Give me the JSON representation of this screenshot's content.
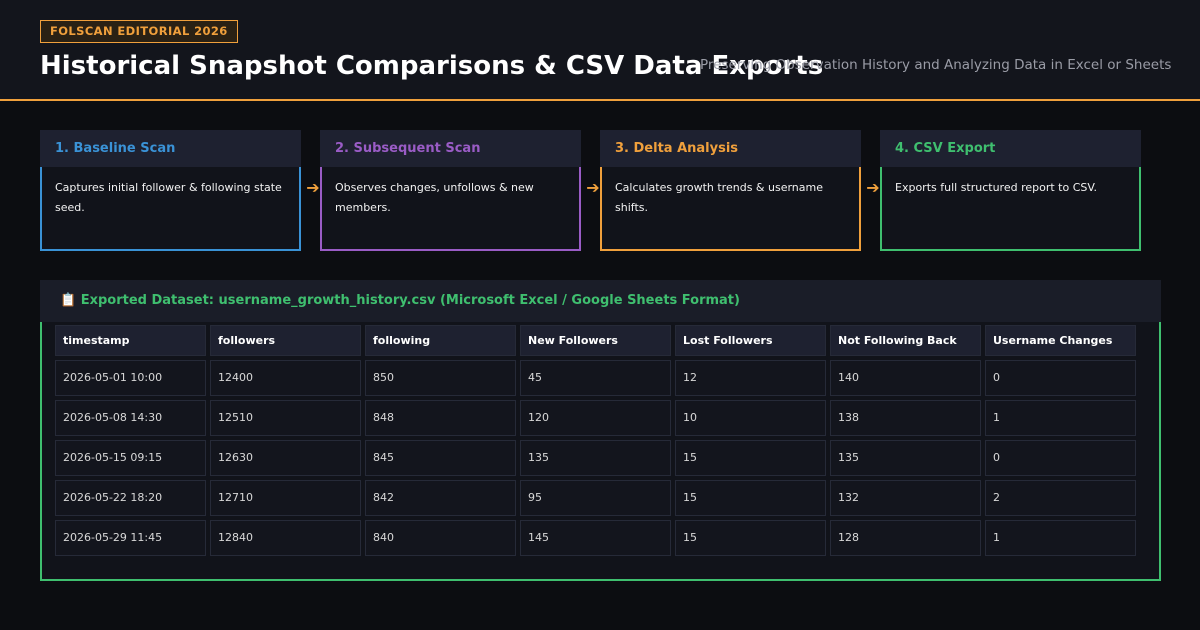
{
  "header": {
    "badge": "FOLSCAN EDITORIAL 2026",
    "title": "Historical Snapshot Comparisons & CSV Data Exports",
    "subtitle": "Preserving Observation History and Analyzing Data in Excel or Sheets"
  },
  "steps": [
    {
      "title": "1. Baseline Scan",
      "desc": "Captures initial follower & following state seed.",
      "color": "#3a92d6"
    },
    {
      "title": "2. Subsequent Scan",
      "desc": "Observes changes, unfollows & new members.",
      "color": "#9a5cc6"
    },
    {
      "title": "3. Delta Analysis",
      "desc": "Calculates growth trends & username shifts.",
      "color": "#f0a03c"
    },
    {
      "title": "4. CSV Export",
      "desc": "Exports full structured report to CSV.",
      "color": "#3fbf6f"
    }
  ],
  "arrow_glyph": "➔",
  "dataset": {
    "heading": "📋 Exported Dataset: username_growth_history.csv (Microsoft Excel / Google Sheets Format)",
    "columns": [
      "timestamp",
      "followers",
      "following",
      "New Followers",
      "Lost Followers",
      "Not Following Back",
      "Username Changes"
    ],
    "rows": [
      [
        "2026-05-01 10:00",
        "12400",
        "850",
        "45",
        "12",
        "140",
        "0"
      ],
      [
        "2026-05-08 14:30",
        "12510",
        "848",
        "120",
        "10",
        "138",
        "1"
      ],
      [
        "2026-05-15 09:15",
        "12630",
        "845",
        "135",
        "15",
        "135",
        "0"
      ],
      [
        "2026-05-22 18:20",
        "12710",
        "842",
        "95",
        "15",
        "132",
        "2"
      ],
      [
        "2026-05-29 11:45",
        "12840",
        "840",
        "145",
        "15",
        "128",
        "1"
      ]
    ]
  }
}
